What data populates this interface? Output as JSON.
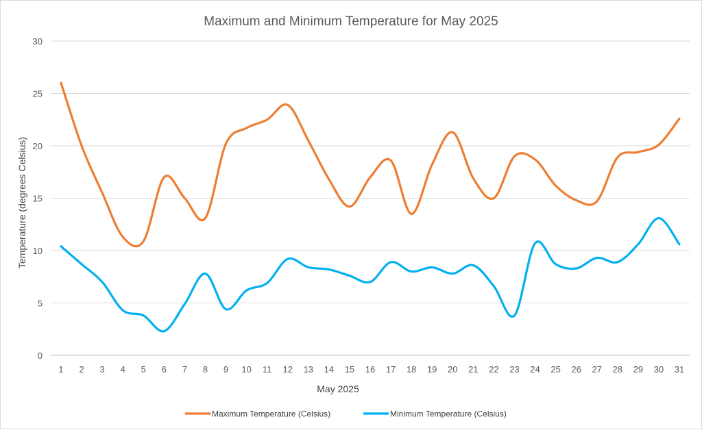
{
  "chart_data": {
    "type": "line",
    "title": "Maximum and Minimum Temperature for May 2025",
    "xlabel": "May 2025",
    "ylabel": "Temperature (degrees Celsius)",
    "ylim": [
      0,
      30
    ],
    "yticks": [
      0,
      5,
      10,
      15,
      20,
      25,
      30
    ],
    "grid": true,
    "smooth": true,
    "legend_position": "bottom",
    "categories": [
      "1",
      "2",
      "3",
      "4",
      "5",
      "6",
      "7",
      "8",
      "9",
      "10",
      "11",
      "12",
      "13",
      "14",
      "15",
      "16",
      "17",
      "18",
      "19",
      "20",
      "21",
      "22",
      "23",
      "24",
      "25",
      "26",
      "27",
      "28",
      "29",
      "30",
      "31"
    ],
    "series": [
      {
        "name": "Maximum Temperature (Celsius)",
        "color": "#ed7d31",
        "values": [
          26.0,
          20.0,
          15.5,
          11.3,
          10.9,
          17.0,
          15.0,
          13.1,
          20.2,
          21.7,
          22.5,
          23.9,
          20.5,
          16.8,
          14.2,
          17.0,
          18.6,
          13.5,
          18.2,
          21.3,
          16.9,
          15.0,
          19.0,
          18.7,
          16.2,
          14.8,
          14.7,
          18.9,
          19.4,
          20.1,
          22.6
        ]
      },
      {
        "name": "Minimum Temperature (Celsius)",
        "color": "#00b0f0",
        "values": [
          10.4,
          8.7,
          7.0,
          4.3,
          3.8,
          2.3,
          4.9,
          7.8,
          4.4,
          6.2,
          6.9,
          9.2,
          8.4,
          8.2,
          7.6,
          7.0,
          8.9,
          8.0,
          8.4,
          7.8,
          8.6,
          6.6,
          3.8,
          10.7,
          8.7,
          8.3,
          9.3,
          8.9,
          10.6,
          13.1,
          10.6
        ]
      }
    ]
  }
}
